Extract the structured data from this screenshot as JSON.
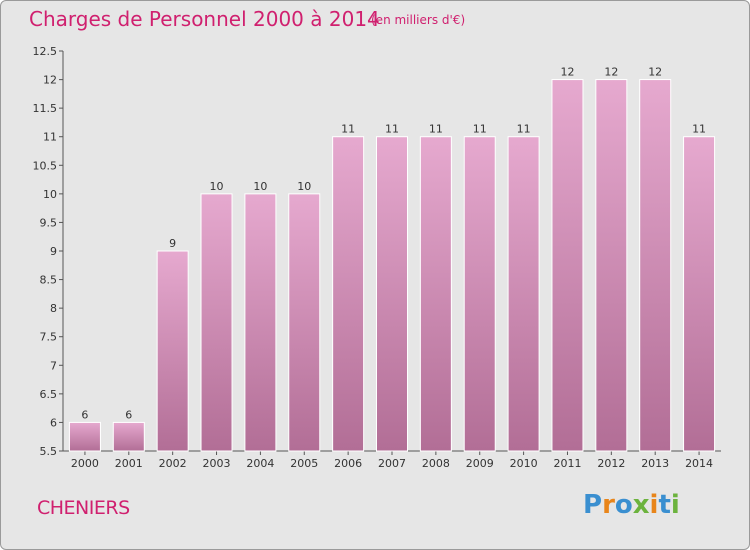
{
  "header": {
    "title": "Charges de Personnel 2000 à 2014",
    "unit": "(en milliers d'€)"
  },
  "footer": {
    "city": "CHENIERS",
    "logo_text": "Proxiti"
  },
  "colors": {
    "accent": "#d0206f",
    "bar_top": "#e6a9cf",
    "bar_bottom": "#b26e96",
    "background": "#e6e6e6"
  },
  "chart_data": {
    "type": "bar",
    "title": "Charges de Personnel 2000 à 2014",
    "xlabel": "",
    "ylabel": "",
    "ylim": [
      5.5,
      12.5
    ],
    "ytick_step": 0.5,
    "grid": false,
    "categories": [
      "2000",
      "2001",
      "2002",
      "2003",
      "2004",
      "2005",
      "2006",
      "2007",
      "2008",
      "2009",
      "2010",
      "2011",
      "2012",
      "2013",
      "2014"
    ],
    "values": [
      6,
      6,
      9,
      10,
      10,
      10,
      11,
      11,
      11,
      11,
      11,
      12,
      12,
      12,
      11
    ],
    "value_labels": [
      "6",
      "6",
      "9",
      "10",
      "10",
      "10",
      "11",
      "11",
      "11",
      "11",
      "11",
      "12",
      "12",
      "12",
      "11"
    ],
    "ytick_labels": [
      "5.5",
      "6",
      "6.5",
      "7",
      "7.5",
      "8",
      "8.5",
      "9",
      "9.5",
      "10",
      "10.5",
      "11",
      "11.5",
      "12",
      "12.5"
    ]
  }
}
